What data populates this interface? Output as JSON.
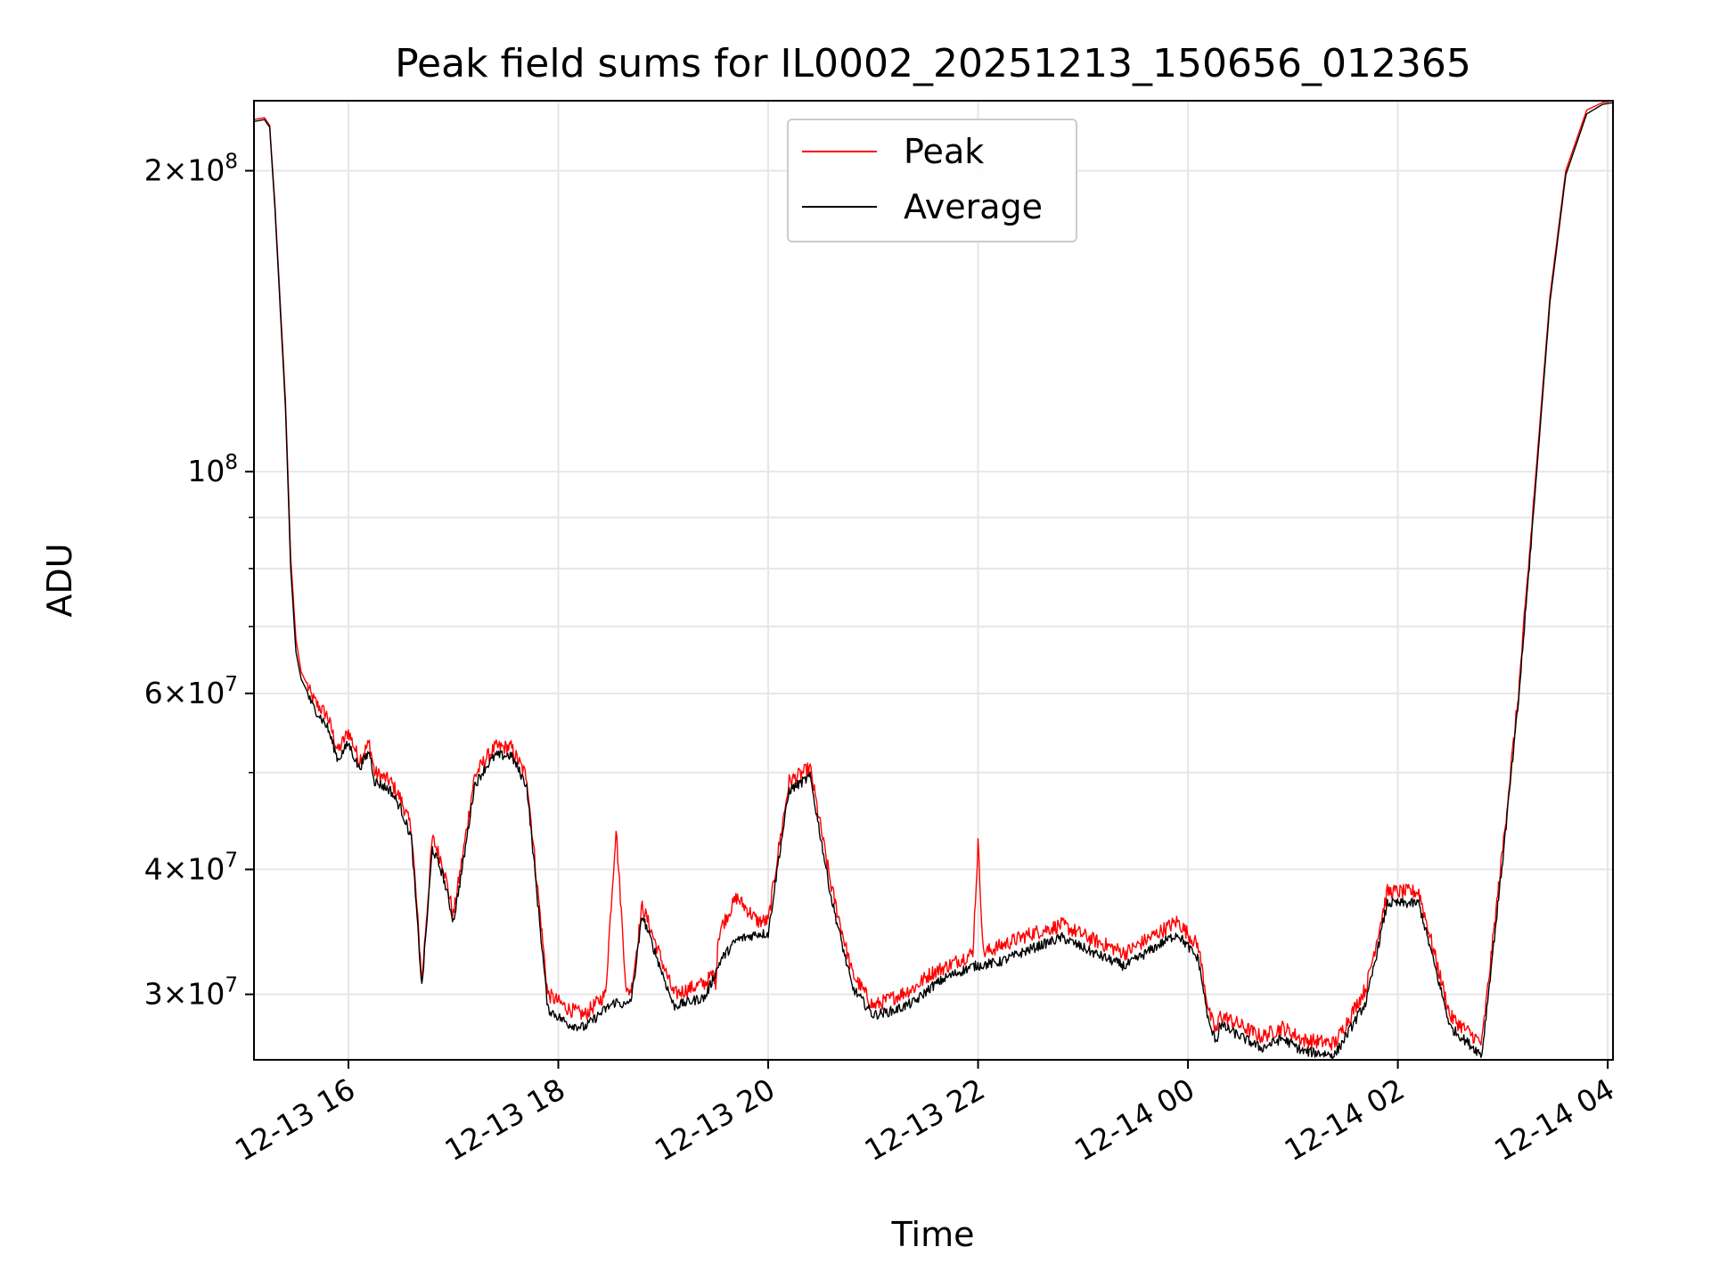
{
  "chart_data": {
    "type": "line",
    "title": "Peak field sums for IL0002_20251213_150656_012365",
    "xlabel": "Time",
    "ylabel": "ADU",
    "yscale": "log",
    "grid": true,
    "legend_position": "top-center",
    "x_unit": "hours since 12-13 15:06",
    "xlim": [
      0,
      12.95
    ],
    "ylim": [
      25800000,
      235000000
    ],
    "x_ticks": [
      {
        "value": 0.9,
        "label": "12-13 16"
      },
      {
        "value": 2.9,
        "label": "12-13 18"
      },
      {
        "value": 4.9,
        "label": "12-13 20"
      },
      {
        "value": 6.9,
        "label": "12-13 22"
      },
      {
        "value": 8.9,
        "label": "12-14 00"
      },
      {
        "value": 10.9,
        "label": "12-14 02"
      },
      {
        "value": 12.9,
        "label": "12-14 04"
      }
    ],
    "y_ticks": [
      {
        "value": 30000000,
        "mantissa": "3",
        "exponent": "7"
      },
      {
        "value": 40000000,
        "mantissa": "4",
        "exponent": "7"
      },
      {
        "value": 60000000,
        "mantissa": "6",
        "exponent": "7"
      },
      {
        "value": 100000000,
        "mantissa": "",
        "exponent": "8"
      },
      {
        "value": 200000000,
        "mantissa": "2",
        "exponent": "8"
      }
    ],
    "y_minor_ticks": [
      50000000,
      70000000,
      80000000,
      90000000
    ],
    "series": [
      {
        "name": "Peak",
        "color": "#ff0000",
        "x": [
          0,
          0.1,
          0.15,
          0.2,
          0.3,
          0.35,
          0.4,
          0.45,
          0.5,
          0.55,
          0.6,
          0.7,
          0.8,
          0.9,
          1.0,
          1.1,
          1.15,
          1.3,
          1.4,
          1.5,
          1.6,
          1.7,
          1.8,
          1.9,
          2.0,
          2.1,
          2.2,
          2.3,
          2.45,
          2.6,
          2.8,
          3.0,
          3.15,
          3.35,
          3.45,
          3.55,
          3.6,
          3.7,
          4.0,
          4.3,
          4.38,
          4.4,
          4.42,
          4.45,
          4.6,
          4.8,
          4.9,
          5.0,
          5.1,
          5.3,
          5.5,
          5.7,
          5.9,
          6.1,
          6.3,
          6.45,
          6.6,
          6.85,
          6.9,
          6.95,
          7.1,
          7.4,
          7.7,
          8.0,
          8.3,
          8.6,
          8.8,
          9.0,
          9.1,
          9.15,
          9.18,
          9.2,
          9.3,
          9.6,
          9.8,
          10.0,
          10.3,
          10.6,
          10.8,
          11.1,
          11.4,
          11.7,
          11.9,
          12.05,
          12.2,
          12.35,
          12.5,
          12.7,
          12.85,
          12.95
        ],
        "y": [
          225000000,
          226000000,
          222000000,
          185000000,
          118000000,
          82000000,
          68000000,
          63000000,
          61500000,
          59500000,
          58500000,
          57000000,
          52500000,
          55000000,
          51500000,
          53500000,
          50000000,
          49000000,
          47000000,
          44000000,
          31000000,
          43000000,
          40500000,
          36000000,
          42000000,
          49500000,
          51500000,
          53000000,
          53000000,
          49500000,
          30000000,
          29000000,
          28600000,
          30000000,
          44000000,
          30000000,
          30500000,
          36800000,
          30000000,
          30800000,
          31500000,
          30700000,
          34000000,
          35000000,
          37500000,
          35500000,
          35500000,
          42000000,
          49000000,
          50500000,
          38500000,
          31500000,
          29200000,
          29800000,
          30500000,
          31500000,
          32000000,
          33000000,
          42500000,
          33000000,
          33500000,
          34500000,
          35200000,
          34000000,
          33000000,
          34500000,
          35500000,
          33500000,
          28800000,
          27800000,
          27600000,
          28600000,
          28300000,
          27200000,
          27800000,
          27000000,
          26800000,
          30500000,
          38000000,
          38000000,
          28500000,
          26800000,
          42000000,
          60000000,
          95000000,
          150000000,
          200000000,
          230000000,
          234000000,
          235000000
        ]
      },
      {
        "name": "Average",
        "color": "#000000",
        "x": [
          0,
          0.1,
          0.15,
          0.2,
          0.3,
          0.35,
          0.4,
          0.45,
          0.5,
          0.55,
          0.6,
          0.7,
          0.8,
          0.9,
          1.0,
          1.1,
          1.15,
          1.3,
          1.4,
          1.5,
          1.6,
          1.7,
          1.8,
          1.9,
          2.0,
          2.1,
          2.2,
          2.3,
          2.45,
          2.6,
          2.8,
          3.0,
          3.15,
          3.35,
          3.45,
          3.55,
          3.6,
          3.7,
          4.0,
          4.3,
          4.45,
          4.6,
          4.8,
          4.9,
          5.0,
          5.1,
          5.3,
          5.5,
          5.7,
          5.9,
          6.1,
          6.3,
          6.45,
          6.6,
          6.85,
          7.1,
          7.4,
          7.7,
          8.0,
          8.3,
          8.6,
          8.8,
          9.0,
          9.1,
          9.15,
          9.18,
          9.2,
          9.3,
          9.6,
          9.8,
          10.0,
          10.3,
          10.6,
          10.8,
          11.1,
          11.4,
          11.7,
          11.9,
          12.05,
          12.2,
          12.35,
          12.5,
          12.7,
          12.85,
          12.95
        ],
        "y": [
          224000000,
          225000000,
          221000000,
          183000000,
          116000000,
          80000000,
          66000000,
          62000000,
          60500000,
          58500000,
          57500000,
          55500000,
          51500000,
          53500000,
          50500000,
          52500000,
          49000000,
          48000000,
          46000000,
          43000000,
          30500000,
          42000000,
          39500000,
          35500000,
          41000000,
          48500000,
          50500000,
          52000000,
          52000000,
          48500000,
          29000000,
          28000000,
          27800000,
          29000000,
          29500000,
          29200000,
          29800000,
          36000000,
          29200000,
          29800000,
          32500000,
          34000000,
          34500000,
          34500000,
          41000000,
          48000000,
          49500000,
          37500000,
          30500000,
          28600000,
          28900000,
          29500000,
          30500000,
          31200000,
          32000000,
          32300000,
          33300000,
          34200000,
          33000000,
          32000000,
          33500000,
          34500000,
          32500000,
          28000000,
          27200000,
          27000000,
          28000000,
          27600000,
          26500000,
          27100000,
          26300000,
          26100000,
          29500000,
          37000000,
          37000000,
          27800000,
          26100000,
          41000000,
          59000000,
          93000000,
          148000000,
          198000000,
          228000000,
          233000000,
          234000000
        ]
      }
    ]
  }
}
